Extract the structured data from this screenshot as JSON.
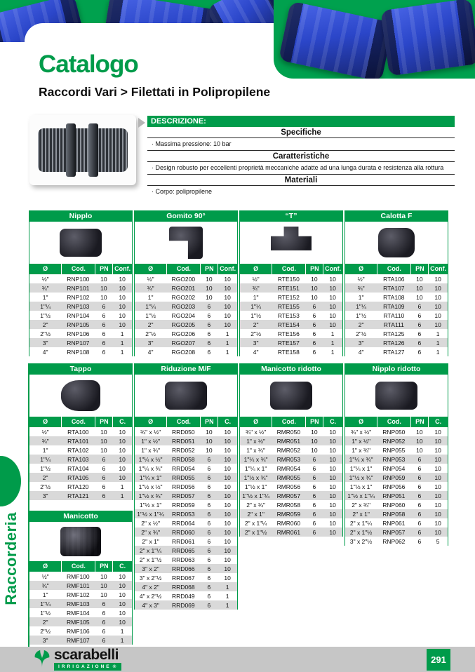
{
  "colors": {
    "brand_green": "#009b4a",
    "row_alt_gray": "#d9d9d9",
    "footer_gray": "#c6c6c6",
    "fitting_blue": "#2b46c9"
  },
  "header": {
    "title": "Catalogo",
    "section_heading": "Raccordi Vari > Filettati in Polipropilene"
  },
  "sidebar": {
    "label": "Raccorderia"
  },
  "description": {
    "header": "DESCRIZIONE:",
    "sections": [
      {
        "title": "Specifiche",
        "items": [
          "Massima pressione: 10 bar"
        ]
      },
      {
        "title": "Caratteristiche",
        "items": [
          "Design robusto per eccellenti proprietà meccaniche adatte ad una lunga durata e resistenza alla rottura"
        ]
      },
      {
        "title": "Materiali",
        "items": [
          "Corpo: polipropilene"
        ]
      }
    ]
  },
  "tables": [
    {
      "title": "Nipplo",
      "photo": "nipplo-fitting-photo",
      "columns": [
        "Ø",
        "Cod.",
        "PN",
        "Conf."
      ],
      "rows": [
        [
          "½\"",
          "RNP100",
          "10",
          "10"
        ],
        [
          "¾\"",
          "RNP101",
          "10",
          "10"
        ],
        [
          "1\"",
          "RNP102",
          "10",
          "10"
        ],
        [
          "1\"¼",
          "RNP103",
          "6",
          "10"
        ],
        [
          "1\"½",
          "RNP104",
          "6",
          "10"
        ],
        [
          "2\"",
          "RNP105",
          "6",
          "10"
        ],
        [
          "2\"½",
          "RNP106",
          "6",
          "1"
        ],
        [
          "3\"",
          "RNP107",
          "6",
          "1"
        ],
        [
          "4\"",
          "RNP108",
          "6",
          "1"
        ]
      ]
    },
    {
      "title": "Gomito 90°",
      "photo": "gomito-90-fitting-photo",
      "columns": [
        "Ø",
        "Cod.",
        "PN",
        "Conf."
      ],
      "rows": [
        [
          "½\"",
          "RGO200",
          "10",
          "10"
        ],
        [
          "¾\"",
          "RGO201",
          "10",
          "10"
        ],
        [
          "1\"",
          "RGO202",
          "10",
          "10"
        ],
        [
          "1\"¼",
          "RGO203",
          "6",
          "10"
        ],
        [
          "1\"½",
          "RGO204",
          "6",
          "10"
        ],
        [
          "2\"",
          "RGO205",
          "6",
          "10"
        ],
        [
          "2\"½",
          "RGO206",
          "6",
          "1"
        ],
        [
          "3\"",
          "RGO207",
          "6",
          "1"
        ],
        [
          "4\"",
          "RGO208",
          "6",
          "1"
        ]
      ]
    },
    {
      "title": "“T”",
      "photo": "tee-fitting-photo",
      "columns": [
        "Ø",
        "Cod.",
        "PN",
        "Conf."
      ],
      "rows": [
        [
          "½\"",
          "RTE150",
          "10",
          "10"
        ],
        [
          "¾\"",
          "RTE151",
          "10",
          "10"
        ],
        [
          "1\"",
          "RTE152",
          "10",
          "10"
        ],
        [
          "1\"¼",
          "RTE155",
          "6",
          "10"
        ],
        [
          "1\"½",
          "RTE153",
          "6",
          "10"
        ],
        [
          "2\"",
          "RTE154",
          "6",
          "10"
        ],
        [
          "2\"½",
          "RTE156",
          "6",
          "1"
        ],
        [
          "3\"",
          "RTE157",
          "6",
          "1"
        ],
        [
          "4\"",
          "RTE158",
          "6",
          "1"
        ]
      ]
    },
    {
      "title": "Calotta F",
      "photo": "calotta-f-fitting-photo",
      "columns": [
        "Ø",
        "Cod.",
        "PN",
        "Conf."
      ],
      "rows": [
        [
          "½\"",
          "RTA106",
          "10",
          "10"
        ],
        [
          "¾\"",
          "RTA107",
          "10",
          "10"
        ],
        [
          "1\"",
          "RTA108",
          "10",
          "10"
        ],
        [
          "1\"¼",
          "RTA109",
          "6",
          "10"
        ],
        [
          "1\"½",
          "RTA110",
          "6",
          "10"
        ],
        [
          "2\"",
          "RTA111",
          "6",
          "10"
        ],
        [
          "2\"½",
          "RTA125",
          "6",
          "1"
        ],
        [
          "3\"",
          "RTA126",
          "6",
          "1"
        ],
        [
          "4\"",
          "RTA127",
          "6",
          "1"
        ]
      ]
    },
    {
      "title": "Tappo",
      "photo": "tappo-fitting-photo",
      "columns": [
        "Ø",
        "Cod.",
        "PN",
        "C."
      ],
      "rows": [
        [
          "½\"",
          "RTA100",
          "10",
          "10"
        ],
        [
          "¾\"",
          "RTA101",
          "10",
          "10"
        ],
        [
          "1\"",
          "RTA102",
          "10",
          "10"
        ],
        [
          "1\"¼",
          "RTA103",
          "6",
          "10"
        ],
        [
          "1\"½",
          "RTA104",
          "6",
          "10"
        ],
        [
          "2\"",
          "RTA105",
          "6",
          "10"
        ],
        [
          "2\"½",
          "RTA120",
          "6",
          "1"
        ],
        [
          "3\"",
          "RTA121",
          "6",
          "1"
        ]
      ]
    },
    {
      "title": "Riduzione M/F",
      "photo": "riduzione-mf-fitting-photo",
      "columns": [
        "Ø",
        "Cod.",
        "PN",
        "C."
      ],
      "rows": [
        [
          "¾\" x ½\"",
          "RRD050",
          "10",
          "10"
        ],
        [
          "1\" x ½\"",
          "RRD051",
          "10",
          "10"
        ],
        [
          "1\" x ¾\"",
          "RRD052",
          "10",
          "10"
        ],
        [
          "1\"¼ x ½\"",
          "RRD058",
          "6",
          "10"
        ],
        [
          "1\"¼ x ¾\"",
          "RRD054",
          "6",
          "10"
        ],
        [
          "1\"¼ x 1\"",
          "RRD055",
          "6",
          "10"
        ],
        [
          "1\"½ x ½\"",
          "RRD056",
          "6",
          "10"
        ],
        [
          "1\"½ x ¾\"",
          "RRD057",
          "6",
          "10"
        ],
        [
          "1\"½ x 1\"",
          "RRD059",
          "6",
          "10"
        ],
        [
          "1\"½ x 1\"¼",
          "RRD053",
          "6",
          "10"
        ],
        [
          "2\" x ½\"",
          "RRD064",
          "6",
          "10"
        ],
        [
          "2\" x ¾\"",
          "RRD060",
          "6",
          "10"
        ],
        [
          "2\" x 1\"",
          "RRD061",
          "6",
          "10"
        ],
        [
          "2\" x 1\"¼",
          "RRD065",
          "6",
          "10"
        ],
        [
          "2\" x 1\"½",
          "RRD063",
          "6",
          "10"
        ],
        [
          "3\" x 2\"",
          "RRD066",
          "6",
          "10"
        ],
        [
          "3\" x 2\"½",
          "RRD067",
          "6",
          "10"
        ],
        [
          "4\" x 2\"",
          "RRD068",
          "6",
          "1"
        ],
        [
          "4\" x 2\"½",
          "RRD049",
          "6",
          "1"
        ],
        [
          "4\" x 3\"",
          "RRD069",
          "6",
          "1"
        ]
      ]
    },
    {
      "title": "Manicotto ridotto",
      "photo": "manicotto-ridotto-fitting-photo",
      "columns": [
        "Ø",
        "Cod.",
        "PN",
        "C."
      ],
      "rows": [
        [
          "¾\" x ½\"",
          "RMR050",
          "10",
          "10"
        ],
        [
          "1\" x ½\"",
          "RMR051",
          "10",
          "10"
        ],
        [
          "1\" x ¾\"",
          "RMR052",
          "10",
          "10"
        ],
        [
          "1\"¼ x ¾\"",
          "RMR053",
          "6",
          "10"
        ],
        [
          "1\"¼ x 1\"",
          "RMR054",
          "6",
          "10"
        ],
        [
          "1\"½ x ¾\"",
          "RMR055",
          "6",
          "10"
        ],
        [
          "1\"½ x 1\"",
          "RMR056",
          "6",
          "10"
        ],
        [
          "1\"½ x 1\"¼",
          "RMR057",
          "6",
          "10"
        ],
        [
          "2\" x ¾\"",
          "RMR058",
          "6",
          "10"
        ],
        [
          "2\" x 1\"",
          "RMR059",
          "6",
          "10"
        ],
        [
          "2\" x 1\"¼",
          "RMR060",
          "6",
          "10"
        ],
        [
          "2\" x 1\"½",
          "RMR061",
          "6",
          "10"
        ]
      ]
    },
    {
      "title": "Nipplo ridotto",
      "photo": "nipplo-ridotto-fitting-photo",
      "columns": [
        "Ø",
        "Cod.",
        "PN",
        "C."
      ],
      "rows": [
        [
          "¾\" x ½\"",
          "RNP050",
          "10",
          "10"
        ],
        [
          "1\" x ½\"",
          "RNP052",
          "10",
          "10"
        ],
        [
          "1\" x ¾\"",
          "RNP055",
          "10",
          "10"
        ],
        [
          "1\"¼ x ¾\"",
          "RNP053",
          "6",
          "10"
        ],
        [
          "1\"¼ x 1\"",
          "RNP054",
          "6",
          "10"
        ],
        [
          "1\"½ x ¾\"",
          "RNP059",
          "6",
          "10"
        ],
        [
          "1\"½ x 1\"",
          "RNP056",
          "6",
          "10"
        ],
        [
          "1\"½ x 1\"¼",
          "RNP051",
          "6",
          "10"
        ],
        [
          "2\" x ¾\"",
          "RNP060",
          "6",
          "10"
        ],
        [
          "2\" x 1\"",
          "RNP058",
          "6",
          "10"
        ],
        [
          "2\" x 1\"¼",
          "RNP061",
          "6",
          "10"
        ],
        [
          "2\" x 1\"½",
          "RNP057",
          "6",
          "10"
        ],
        [
          "3\" x 2\"½",
          "RNP062",
          "6",
          "5"
        ]
      ]
    },
    {
      "title": "Manicotto",
      "photo": "manicotto-fitting-photo",
      "columns": [
        "Ø",
        "Cod.",
        "PN",
        "C."
      ],
      "rows": [
        [
          "½\"",
          "RMF100",
          "10",
          "10"
        ],
        [
          "¾\"",
          "RMF101",
          "10",
          "10"
        ],
        [
          "1\"",
          "RMF102",
          "10",
          "10"
        ],
        [
          "1\"¼",
          "RMF103",
          "6",
          "10"
        ],
        [
          "1\"½",
          "RMF104",
          "6",
          "10"
        ],
        [
          "2\"",
          "RMF105",
          "6",
          "10"
        ],
        [
          "2\"½",
          "RMF106",
          "6",
          "1"
        ],
        [
          "3\"",
          "RMF107",
          "6",
          "1"
        ]
      ]
    }
  ],
  "footer": {
    "brand": "scarabelli",
    "tagline": "IRRIGAZIONE",
    "registered": "®",
    "page_number": "291"
  }
}
